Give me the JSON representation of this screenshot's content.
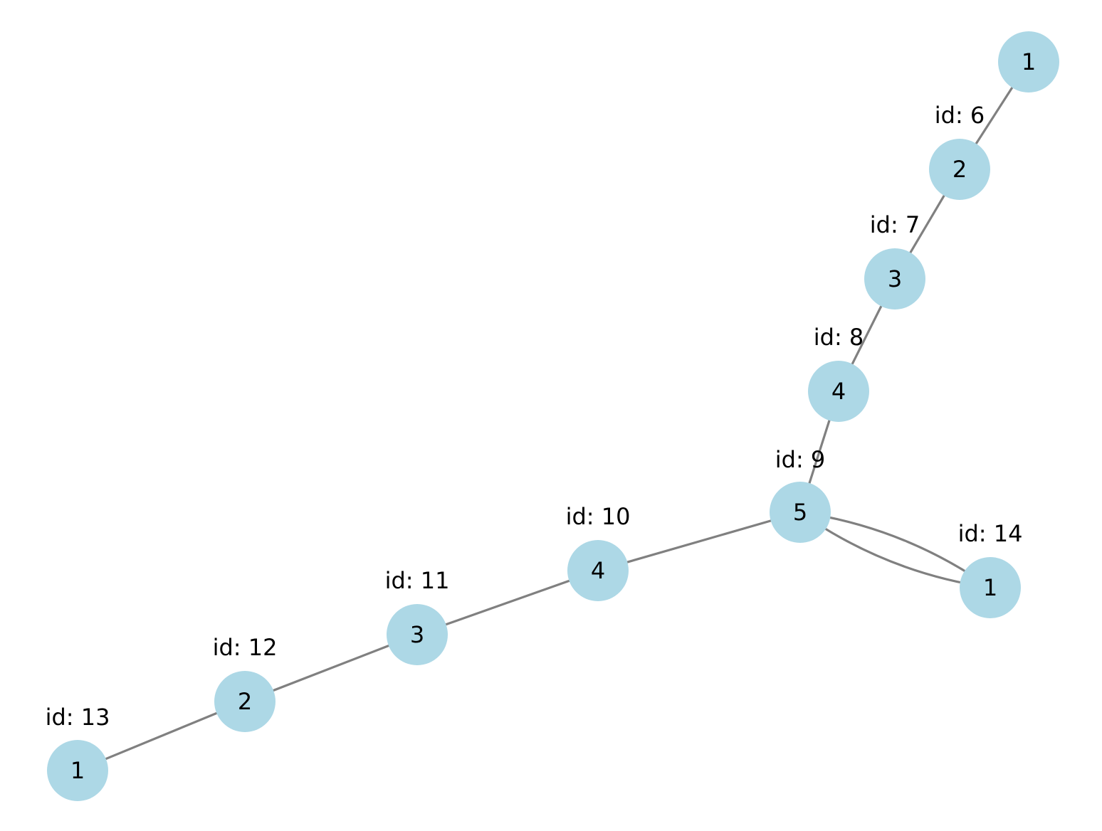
{
  "graph": {
    "node_color": "#add8e6",
    "edge_color": "#808080",
    "nodes": [
      {
        "key": "n5",
        "value": "1",
        "id_label": ""
      },
      {
        "key": "n6",
        "value": "2",
        "id_label": "id: 6"
      },
      {
        "key": "n7",
        "value": "3",
        "id_label": "id: 7"
      },
      {
        "key": "n8",
        "value": "4",
        "id_label": "id: 8"
      },
      {
        "key": "n9",
        "value": "5",
        "id_label": "id: 9"
      },
      {
        "key": "n10",
        "value": "4",
        "id_label": "id: 10"
      },
      {
        "key": "n11",
        "value": "3",
        "id_label": "id: 11"
      },
      {
        "key": "n12",
        "value": "2",
        "id_label": "id: 12"
      },
      {
        "key": "n13",
        "value": "1",
        "id_label": "id: 13"
      },
      {
        "key": "n14",
        "value": "1",
        "id_label": "id: 14"
      }
    ],
    "edges": [
      {
        "from": "n5",
        "to": "n6"
      },
      {
        "from": "n6",
        "to": "n7"
      },
      {
        "from": "n7",
        "to": "n8"
      },
      {
        "from": "n8",
        "to": "n9"
      },
      {
        "from": "n9",
        "to": "n10"
      },
      {
        "from": "n10",
        "to": "n11"
      },
      {
        "from": "n11",
        "to": "n12"
      },
      {
        "from": "n12",
        "to": "n13"
      },
      {
        "from": "n9",
        "to": "n14"
      },
      {
        "from": "n14",
        "to": "n9"
      }
    ]
  }
}
